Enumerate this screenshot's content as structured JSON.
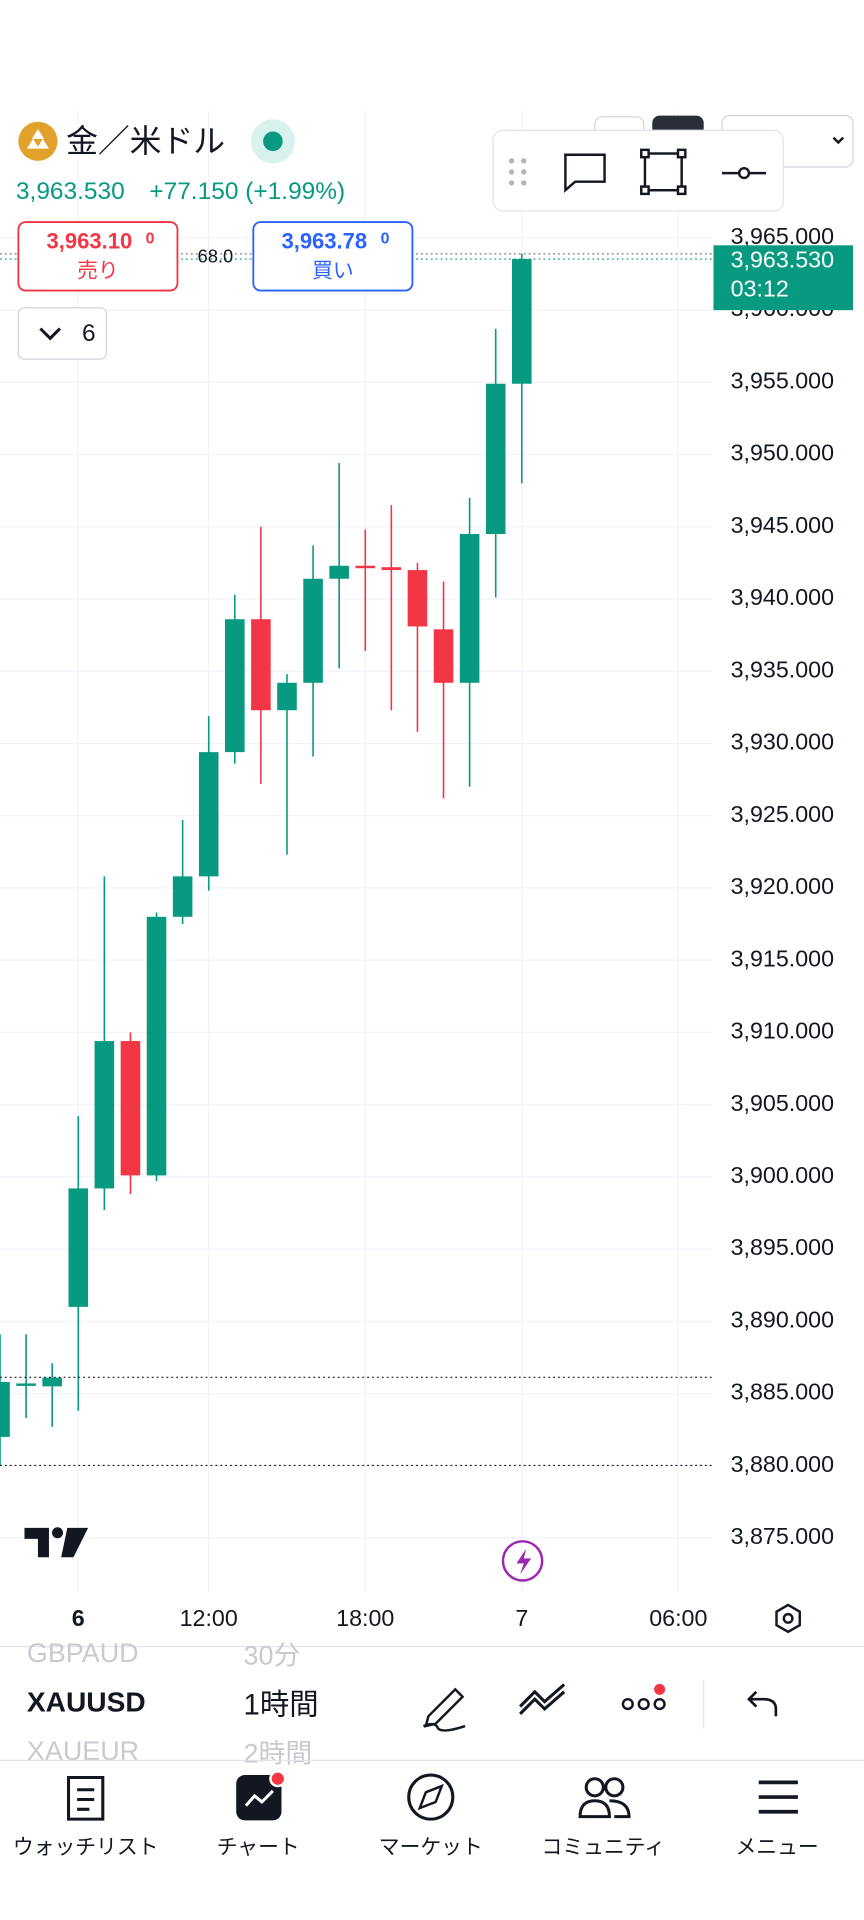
{
  "header": {
    "symbol_name": "金／米ドル",
    "price": "3,963.530",
    "change": "+77.150 (+1.99%)",
    "sell_price": "3,963.10",
    "sell_price_suffix": "0",
    "sell_label": "売り",
    "spread": "68.0",
    "buy_price": "3,963.78",
    "buy_price_suffix": "0",
    "buy_label": "買い",
    "layers_count": "6"
  },
  "price_tag": {
    "price": "3,963.530",
    "countdown": "03:12"
  },
  "chart_data": {
    "type": "candlestick",
    "open": [
      3882.0,
      3885.7,
      3885.5,
      3891.0,
      3899.2,
      3909.4,
      3900.1,
      3918.0,
      3920.8,
      3929.4,
      3938.6,
      3932.3,
      3934.2,
      3941.4,
      3942.3,
      3942.2,
      3942.0,
      3937.9,
      3934.2,
      3944.5,
      3954.9
    ],
    "high": [
      3889.1,
      3889.1,
      3887.1,
      3904.2,
      3920.8,
      3910.0,
      3918.3,
      3924.7,
      3931.9,
      3940.3,
      3945.0,
      3934.8,
      3943.7,
      3949.4,
      3944.8,
      3946.5,
      3942.5,
      3941.2,
      3947.0,
      3958.7,
      3963.9
    ],
    "low": [
      3880.0,
      3883.3,
      3882.7,
      3883.8,
      3897.7,
      3898.8,
      3899.7,
      3917.5,
      3919.8,
      3928.6,
      3927.2,
      3922.3,
      3929.1,
      3935.2,
      3936.4,
      3932.3,
      3930.8,
      3926.2,
      3927.0,
      3940.1,
      3948.0
    ],
    "close": [
      3885.8,
      3885.7,
      3886.1,
      3899.2,
      3909.4,
      3900.1,
      3918.0,
      3920.8,
      3929.4,
      3938.6,
      3932.3,
      3934.2,
      3941.4,
      3942.3,
      3942.2,
      3942.0,
      3938.1,
      3934.2,
      3944.5,
      3954.9,
      3963.53
    ],
    "up_color": "#089981",
    "down_color": "#f23645",
    "xlim": [
      0,
      27.3
    ],
    "xticks": [
      {
        "value": 3,
        "label": "6"
      },
      {
        "value": 8,
        "label": "12:00"
      },
      {
        "value": 14,
        "label": "18:00"
      },
      {
        "value": 20,
        "label": "7"
      },
      {
        "value": 26,
        "label": "06:00"
      }
    ],
    "ylim": [
      3871.3,
      3973.8
    ],
    "yticks": [
      {
        "value": 3965,
        "label": "3,965.000"
      },
      {
        "value": 3960,
        "label": "3,960.000"
      },
      {
        "value": 3955,
        "label": "3,955.000"
      },
      {
        "value": 3950,
        "label": "3,950.000"
      },
      {
        "value": 3945,
        "label": "3,945.000"
      },
      {
        "value": 3940,
        "label": "3,940.000"
      },
      {
        "value": 3935,
        "label": "3,935.000"
      },
      {
        "value": 3930,
        "label": "3,930.000"
      },
      {
        "value": 3925,
        "label": "3,925.000"
      },
      {
        "value": 3920,
        "label": "3,920.000"
      },
      {
        "value": 3915,
        "label": "3,915.000"
      },
      {
        "value": 3910,
        "label": "3,910.000"
      },
      {
        "value": 3905,
        "label": "3,905.000"
      },
      {
        "value": 3900,
        "label": "3,900.000"
      },
      {
        "value": 3895,
        "label": "3,895.000"
      },
      {
        "value": 3890,
        "label": "3,890.000"
      },
      {
        "value": 3885,
        "label": "3,885.000"
      },
      {
        "value": 3880,
        "label": "3,880.000"
      },
      {
        "value": 3875,
        "label": "3,875.000"
      }
    ],
    "grid": true
  },
  "toolbar": {
    "symbols": [
      "GBPAUD",
      "XAUUSD",
      "XAUEUR"
    ],
    "intervals": [
      "30分",
      "1時間",
      "2時間"
    ]
  },
  "nav": [
    "ウォッチリスト",
    "チャート",
    "マーケット",
    "コミュニティ",
    "メニュー"
  ]
}
